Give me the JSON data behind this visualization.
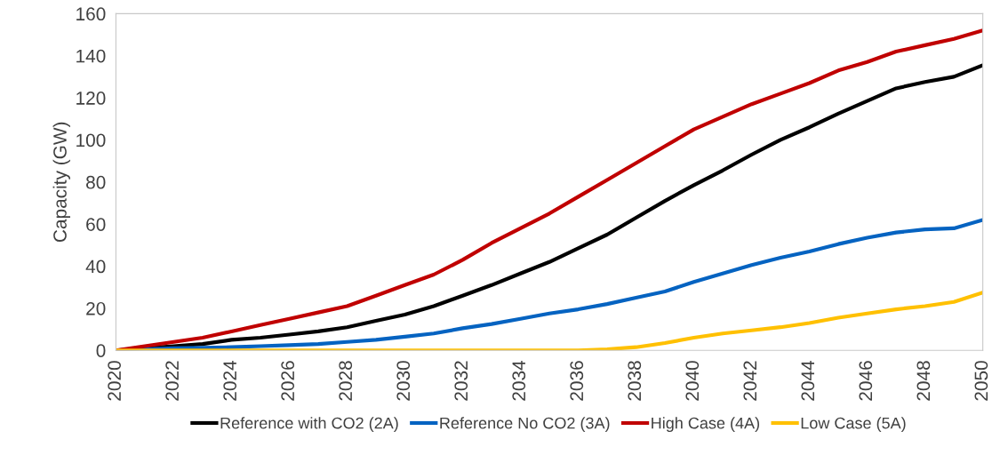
{
  "chart_data": {
    "type": "line",
    "ylabel": "Capacity (GW)",
    "x": [
      2020,
      2021,
      2022,
      2023,
      2024,
      2025,
      2026,
      2027,
      2028,
      2029,
      2030,
      2031,
      2032,
      2033,
      2034,
      2035,
      2036,
      2037,
      2038,
      2039,
      2040,
      2041,
      2042,
      2043,
      2044,
      2045,
      2046,
      2047,
      2048,
      2049,
      2050
    ],
    "series": [
      {
        "name": "Reference with CO2 (2A)",
        "color": "#000000",
        "values": [
          0,
          1,
          2,
          3,
          5,
          6,
          7.5,
          9,
          11,
          14,
          17,
          21,
          26,
          31,
          36.5,
          42,
          48.5,
          55,
          63,
          71,
          78.5,
          85.5,
          93,
          100,
          106,
          112.5,
          118.5,
          124.5,
          127.5,
          130,
          135.5
        ]
      },
      {
        "name": "Reference No CO2 (3A)",
        "color": "#0563c1",
        "values": [
          0,
          0.5,
          1,
          1.2,
          1.5,
          2,
          2.5,
          3,
          4,
          5,
          6.5,
          8,
          10.5,
          12.5,
          15,
          17.5,
          19.5,
          22,
          25,
          28,
          32.5,
          36.5,
          40.5,
          44,
          47,
          50.5,
          53.5,
          56,
          57.5,
          58,
          62
        ]
      },
      {
        "name": "High Case (4A)",
        "color": "#c00000",
        "values": [
          0,
          2,
          4,
          6,
          9,
          12,
          15,
          18,
          21,
          26,
          31,
          36,
          43,
          51,
          58,
          65,
          73,
          81,
          89,
          97,
          105,
          111,
          117,
          122,
          127,
          133,
          137,
          142,
          145,
          148,
          152
        ]
      },
      {
        "name": "Low Case (5A)",
        "color": "#ffc000",
        "values": [
          0,
          0,
          0,
          0,
          0,
          0,
          0,
          0,
          0,
          0,
          0,
          0,
          0,
          0,
          0,
          0,
          0,
          0.5,
          1.5,
          3.5,
          6,
          8,
          9.5,
          11,
          13,
          15.5,
          17.5,
          19.5,
          21,
          23,
          27.5
        ]
      }
    ],
    "xlim": [
      2020,
      2050
    ],
    "xticks": [
      2020,
      2022,
      2024,
      2026,
      2028,
      2030,
      2032,
      2034,
      2036,
      2038,
      2040,
      2042,
      2044,
      2046,
      2048,
      2050
    ],
    "ylim": [
      0,
      160
    ],
    "yticks": [
      0,
      20,
      40,
      60,
      80,
      100,
      120,
      140,
      160
    ],
    "grid": false,
    "legend": "bottom",
    "marker": "none",
    "line_style": "solid"
  }
}
